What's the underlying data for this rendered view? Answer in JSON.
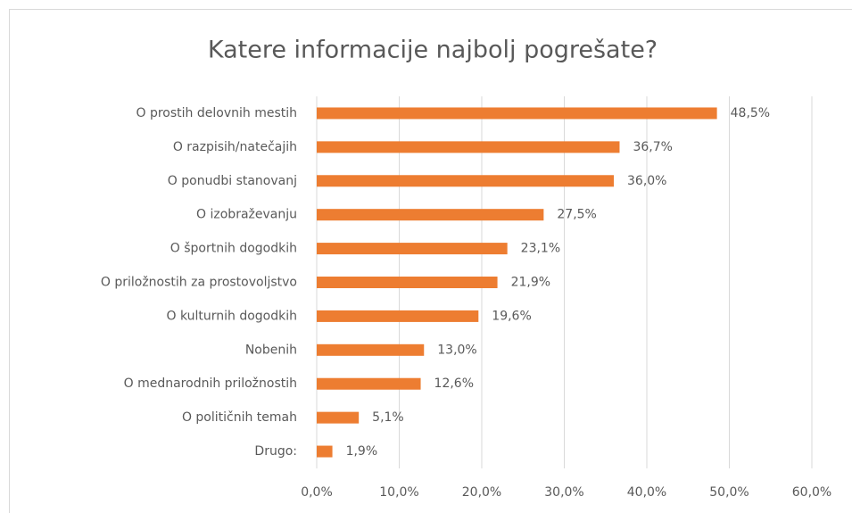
{
  "chart_data": {
    "type": "bar",
    "orientation": "horizontal",
    "title": "Katere informacije najbolj pogrešate?",
    "categories": [
      "O prostih delovnih mestih",
      "O razpisih/natečajih",
      "O ponudbi stanovanj",
      "O izobraževanju",
      "O športnih dogodkih",
      "O priložnostih za prostovoljstvo",
      "O kulturnih dogodkih",
      "Nobenih",
      "O mednarodnih priložnostih",
      "O političnih temah",
      "Drugo:"
    ],
    "values": [
      48.5,
      36.7,
      36.0,
      27.5,
      23.1,
      21.9,
      19.6,
      13.0,
      12.6,
      5.1,
      1.9
    ],
    "value_labels": [
      "48,5%",
      "36,7%",
      "36,0%",
      "27,5%",
      "23,1%",
      "21,9%",
      "19,6%",
      "13,0%",
      "12,6%",
      "5,1%",
      "1,9%"
    ],
    "color": "#ed7d31",
    "xlim": [
      0,
      60
    ],
    "xticks": [
      {
        "value": 0,
        "label": "0,0%"
      },
      {
        "value": 10,
        "label": "10,0%"
      },
      {
        "value": 20,
        "label": "20,0%"
      },
      {
        "value": 30,
        "label": "30,0%"
      },
      {
        "value": 40,
        "label": "40,0%"
      },
      {
        "value": 50,
        "label": "50,0%"
      },
      {
        "value": 60,
        "label": "60,0%"
      }
    ],
    "grid": true
  }
}
